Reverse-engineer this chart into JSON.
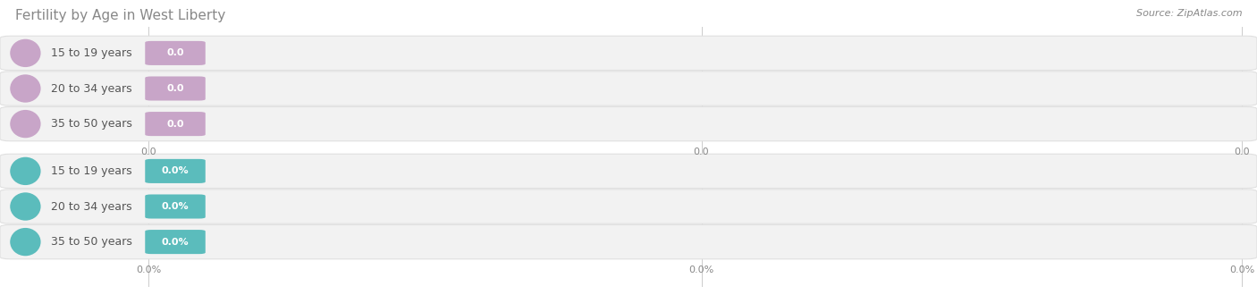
{
  "title": "Fertility by Age in West Liberty",
  "source": "Source: ZipAtlas.com",
  "top_categories": [
    "15 to 19 years",
    "20 to 34 years",
    "35 to 50 years"
  ],
  "bottom_categories": [
    "15 to 19 years",
    "20 to 34 years",
    "35 to 50 years"
  ],
  "top_value_labels": [
    "0.0",
    "0.0",
    "0.0"
  ],
  "bottom_value_labels": [
    "0.0%",
    "0.0%",
    "0.0%"
  ],
  "top_bar_color": "#c8a5c8",
  "bottom_bar_color": "#5bbcbc",
  "top_axis_ticks": [
    "0.0",
    "0.0",
    "0.0"
  ],
  "bottom_axis_ticks": [
    "0.0%",
    "0.0%",
    "0.0%"
  ],
  "bg_color": "#ffffff",
  "bar_bg_color": "#f2f2f2",
  "bar_border_color": "#e0e0e0",
  "title_fontsize": 11,
  "source_fontsize": 8,
  "label_fontsize": 9,
  "value_fontsize": 8,
  "tick_fontsize": 8,
  "fig_width": 14.06,
  "fig_height": 3.3
}
